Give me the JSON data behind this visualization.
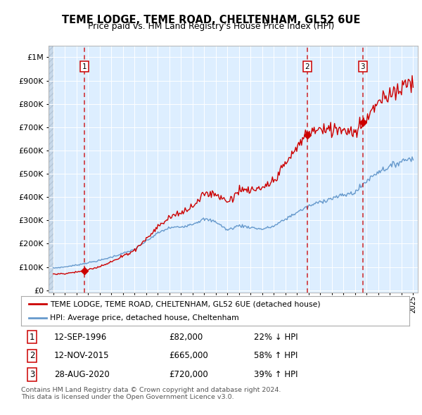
{
  "title": "TEME LODGE, TEME ROAD, CHELTENHAM, GL52 6UE",
  "subtitle": "Price paid vs. HM Land Registry's House Price Index (HPI)",
  "yticks": [
    0,
    100000,
    200000,
    300000,
    400000,
    500000,
    600000,
    700000,
    800000,
    900000,
    1000000
  ],
  "xlim": [
    1993.6,
    2025.4
  ],
  "ylim": [
    -10000,
    1050000
  ],
  "sales": [
    {
      "date": 1996.7,
      "price": 82000,
      "label": "1"
    },
    {
      "date": 2015.87,
      "price": 665000,
      "label": "2"
    },
    {
      "date": 2020.66,
      "price": 720000,
      "label": "3"
    }
  ],
  "sale_color": "#cc0000",
  "hpi_color": "#6699cc",
  "legend_property": "TEME LODGE, TEME ROAD, CHELTENHAM, GL52 6UE (detached house)",
  "legend_hpi": "HPI: Average price, detached house, Cheltenham",
  "table": [
    {
      "num": "1",
      "date": "12-SEP-1996",
      "price": "£82,000",
      "change": "22% ↓ HPI"
    },
    {
      "num": "2",
      "date": "12-NOV-2015",
      "price": "£665,000",
      "change": "58% ↑ HPI"
    },
    {
      "num": "3",
      "date": "28-AUG-2020",
      "price": "£720,000",
      "change": "39% ↑ HPI"
    }
  ],
  "footnote": "Contains HM Land Registry data © Crown copyright and database right 2024.\nThis data is licensed under the Open Government Licence v3.0.",
  "plot_bg": "#ddeeff",
  "fig_bg": "#ffffff"
}
